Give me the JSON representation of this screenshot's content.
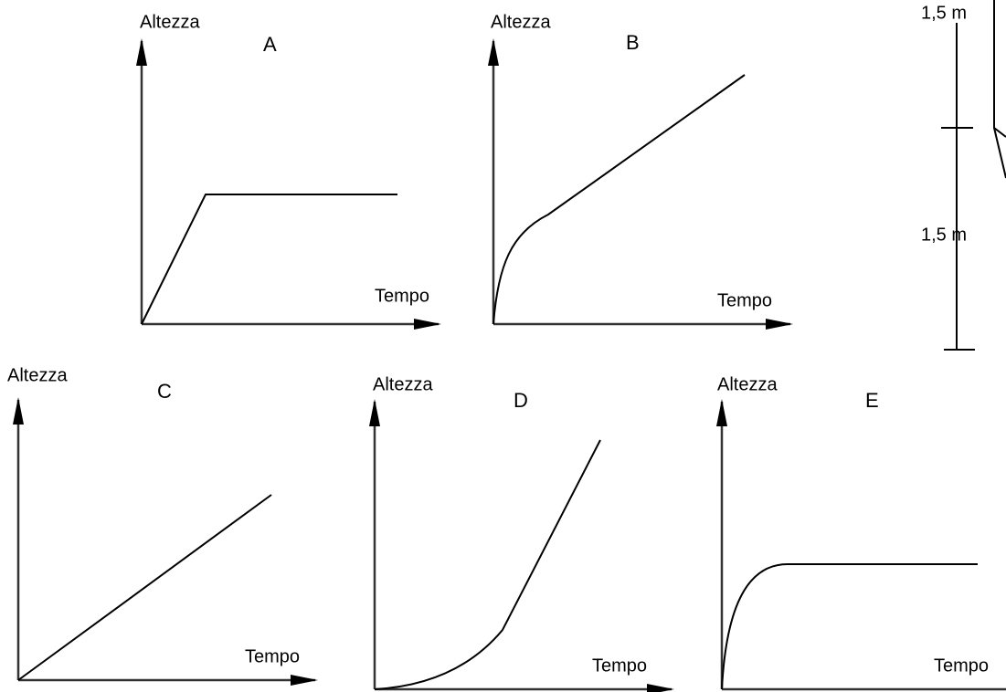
{
  "graphs": [
    {
      "letter": "A",
      "y_label": "Altezza",
      "x_label": "Tempo"
    },
    {
      "letter": "B",
      "y_label": "Altezza",
      "x_label": "Tempo"
    },
    {
      "letter": "C",
      "y_label": "Altezza",
      "x_label": "Tempo"
    },
    {
      "letter": "D",
      "y_label": "Altezza",
      "x_label": "Tempo"
    },
    {
      "letter": "E",
      "y_label": "Altezza",
      "x_label": "Tempo"
    }
  ],
  "dimension_labels": [
    "1,5 m",
    "1,5 m"
  ]
}
